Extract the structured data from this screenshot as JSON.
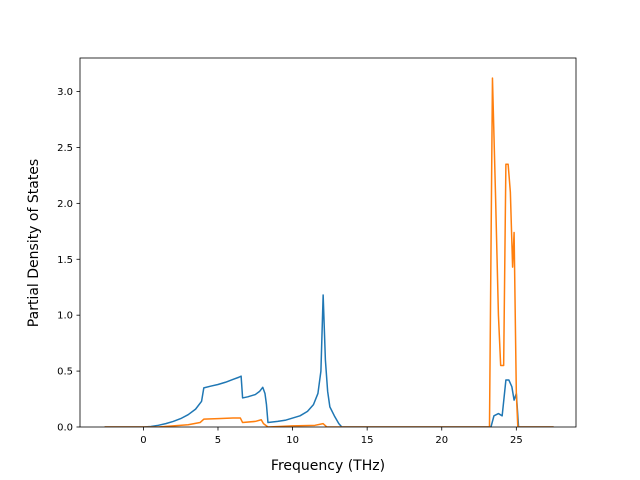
{
  "chart_data": {
    "type": "line",
    "title": "",
    "xlabel": "Frequency (THz)",
    "ylabel": "Partial Density of States",
    "xlim": [
      -4.25,
      29
    ],
    "ylim": [
      0,
      3.3
    ],
    "grid": false,
    "legend": "none",
    "x_ticks": [
      0,
      5,
      10,
      15,
      20,
      25
    ],
    "x_tick_labels": [
      "0",
      "5",
      "10",
      "15",
      "20",
      "25"
    ],
    "y_ticks": [
      0.0,
      0.5,
      1.0,
      1.5,
      2.0,
      2.5,
      3.0
    ],
    "y_tick_labels": [
      "0.0",
      "0.5",
      "1.0",
      "1.5",
      "2.0",
      "2.5",
      "3.0"
    ],
    "series": [
      {
        "color": "#1f77b4",
        "points": [
          [
            -2.6,
            0
          ],
          [
            0,
            0
          ],
          [
            0.5,
            0.005
          ],
          [
            1,
            0.015
          ],
          [
            1.5,
            0.03
          ],
          [
            2,
            0.05
          ],
          [
            2.5,
            0.075
          ],
          [
            3,
            0.11
          ],
          [
            3.5,
            0.16
          ],
          [
            3.9,
            0.23
          ],
          [
            4.05,
            0.35
          ],
          [
            4.5,
            0.365
          ],
          [
            5,
            0.38
          ],
          [
            5.5,
            0.4
          ],
          [
            6,
            0.425
          ],
          [
            6.4,
            0.445
          ],
          [
            6.55,
            0.455
          ],
          [
            6.65,
            0.26
          ],
          [
            7,
            0.27
          ],
          [
            7.5,
            0.29
          ],
          [
            7.8,
            0.32
          ],
          [
            8,
            0.355
          ],
          [
            8.15,
            0.3
          ],
          [
            8.25,
            0.2
          ],
          [
            8.35,
            0.04
          ],
          [
            9,
            0.05
          ],
          [
            9.5,
            0.06
          ],
          [
            10,
            0.08
          ],
          [
            10.5,
            0.1
          ],
          [
            11,
            0.14
          ],
          [
            11.4,
            0.2
          ],
          [
            11.7,
            0.3
          ],
          [
            11.9,
            0.5
          ],
          [
            12.05,
            1.18
          ],
          [
            12.2,
            0.6
          ],
          [
            12.35,
            0.32
          ],
          [
            12.5,
            0.18
          ],
          [
            12.8,
            0.1
          ],
          [
            13.1,
            0.03
          ],
          [
            13.3,
            0
          ],
          [
            23.3,
            0
          ],
          [
            23.5,
            0.1
          ],
          [
            23.8,
            0.12
          ],
          [
            24.05,
            0.1
          ],
          [
            24.3,
            0.42
          ],
          [
            24.5,
            0.42
          ],
          [
            24.7,
            0.36
          ],
          [
            24.85,
            0.24
          ],
          [
            25.0,
            0.3
          ],
          [
            25.15,
            0
          ],
          [
            27.5,
            0
          ]
        ]
      },
      {
        "color": "#ff7f0e",
        "points": [
          [
            -2.6,
            0
          ],
          [
            1,
            0
          ],
          [
            2,
            0.01
          ],
          [
            3,
            0.02
          ],
          [
            3.8,
            0.04
          ],
          [
            4.05,
            0.07
          ],
          [
            5,
            0.075
          ],
          [
            6,
            0.08
          ],
          [
            6.5,
            0.08
          ],
          [
            6.65,
            0.04
          ],
          [
            7.5,
            0.05
          ],
          [
            7.9,
            0.065
          ],
          [
            8.05,
            0.03
          ],
          [
            8.35,
            0
          ],
          [
            10,
            0.01
          ],
          [
            11.5,
            0.015
          ],
          [
            12.05,
            0.03
          ],
          [
            12.3,
            0
          ],
          [
            23.2,
            0
          ],
          [
            23.4,
            3.12
          ],
          [
            23.6,
            2.1
          ],
          [
            23.8,
            1.0
          ],
          [
            23.95,
            0.55
          ],
          [
            24.15,
            0.55
          ],
          [
            24.3,
            2.35
          ],
          [
            24.45,
            2.35
          ],
          [
            24.6,
            2.1
          ],
          [
            24.75,
            1.43
          ],
          [
            24.85,
            1.74
          ],
          [
            25.0,
            0.3
          ],
          [
            25.1,
            0
          ],
          [
            27.5,
            0
          ]
        ]
      }
    ]
  }
}
